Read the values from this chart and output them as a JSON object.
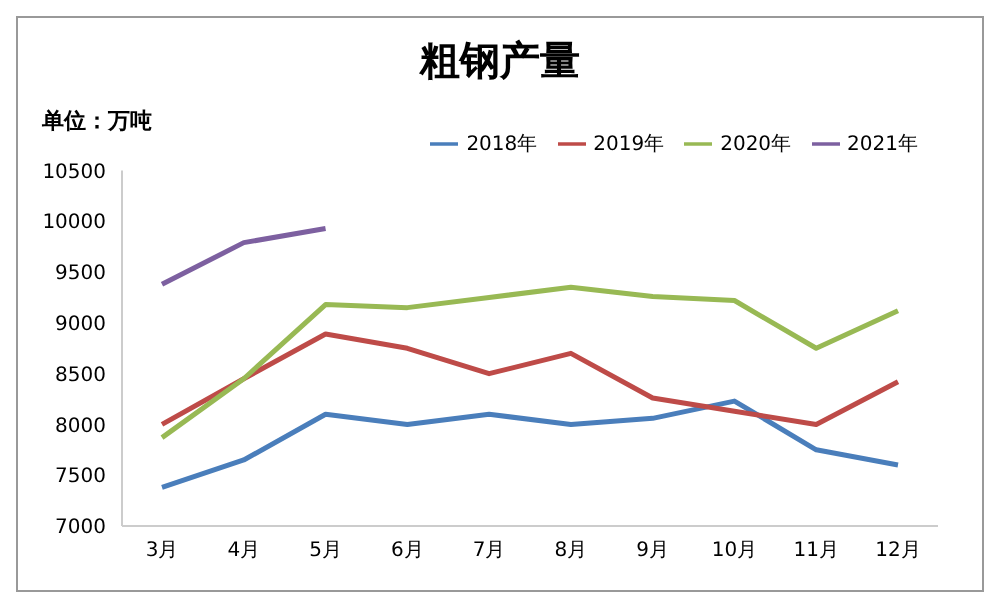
{
  "chart_data": {
    "type": "line",
    "title": "粗钢产量",
    "ylabel": "单位：万吨",
    "categories": [
      "3月",
      "4月",
      "5月",
      "6月",
      "7月",
      "8月",
      "9月",
      "10月",
      "11月",
      "12月"
    ],
    "series": [
      {
        "name": "2018年",
        "color": "#4a7ebb",
        "values": [
          7380,
          7650,
          8100,
          8000,
          8100,
          8000,
          8060,
          8230,
          7750,
          7600
        ]
      },
      {
        "name": "2019年",
        "color": "#be4b48",
        "values": [
          8000,
          8450,
          8890,
          8750,
          8500,
          8700,
          8260,
          8130,
          8000,
          8420
        ]
      },
      {
        "name": "2020年",
        "color": "#98b954",
        "values": [
          7870,
          8450,
          9180,
          9150,
          9250,
          9350,
          9260,
          9220,
          8750,
          9120
        ]
      },
      {
        "name": "2021年",
        "color": "#7d60a0",
        "values": [
          9380,
          9790,
          9930,
          null,
          null,
          null,
          null,
          null,
          null,
          null
        ]
      }
    ],
    "ylim": [
      7000,
      10500
    ],
    "yticks": [
      7000,
      7500,
      8000,
      8500,
      9000,
      9500,
      10000,
      10500
    ],
    "grid": false,
    "legend": "top right",
    "marker": "none",
    "line_style": "solid"
  }
}
